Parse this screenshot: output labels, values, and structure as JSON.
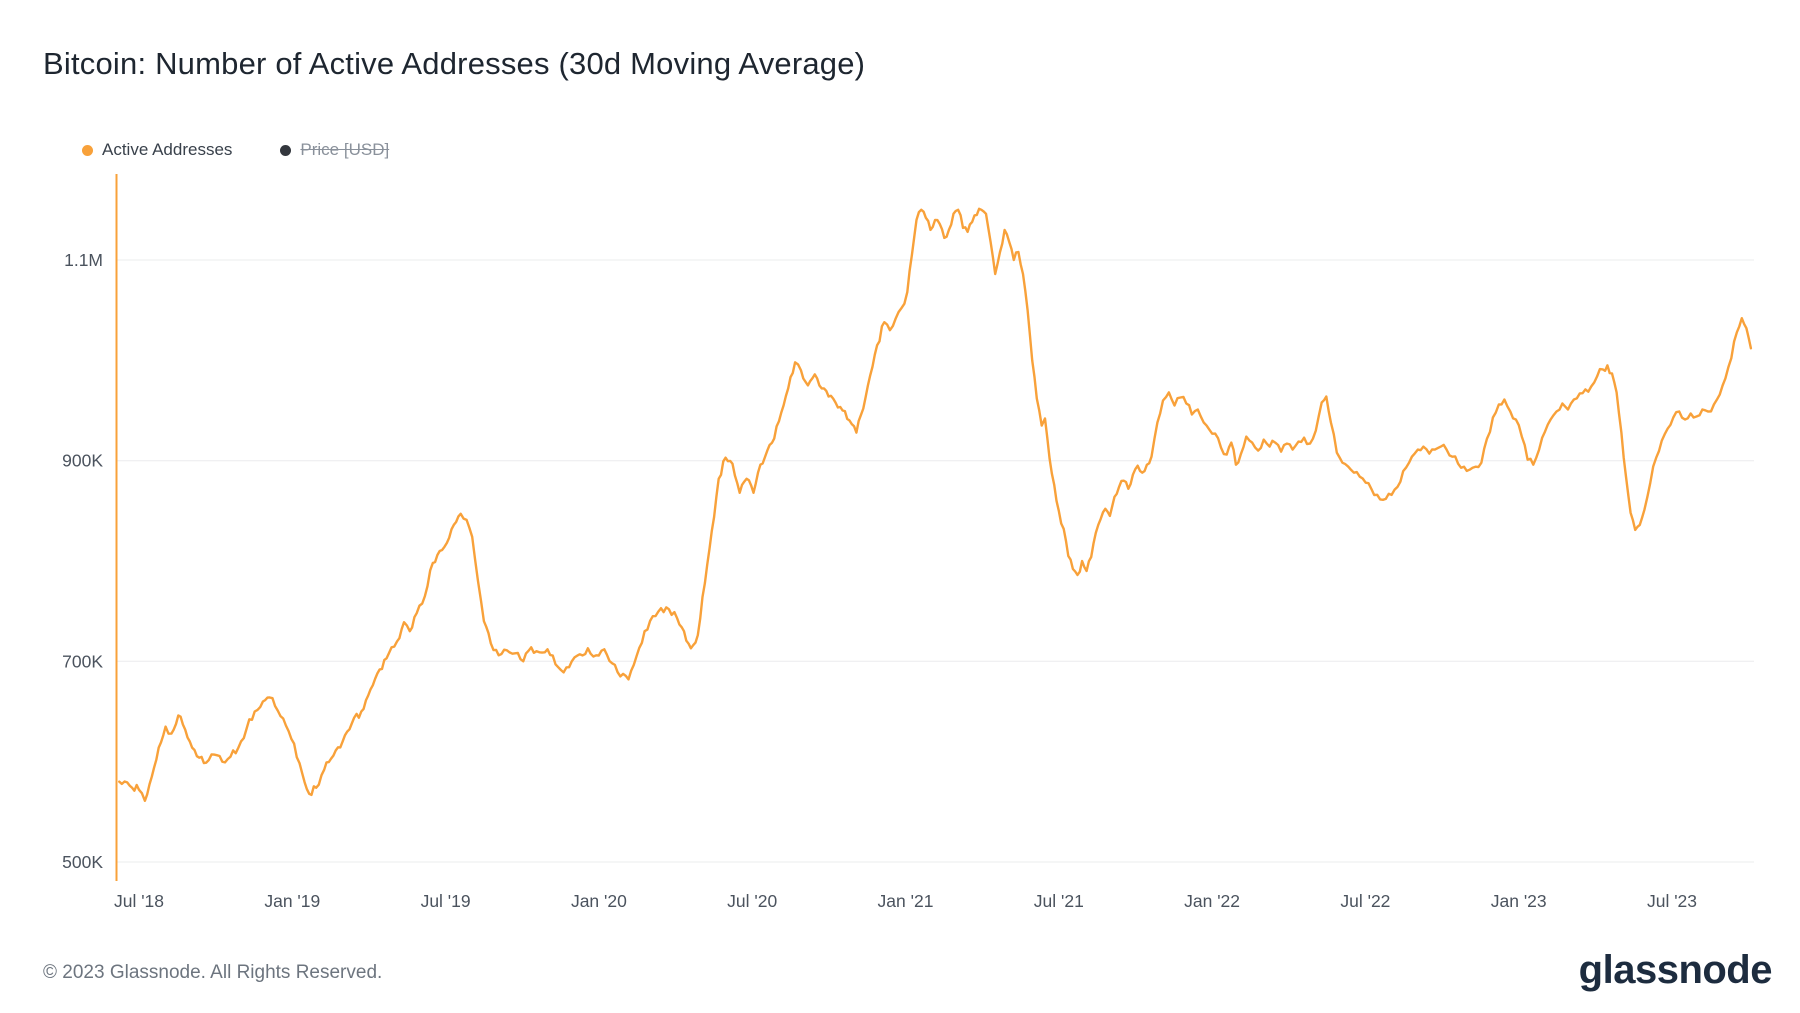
{
  "header": {
    "title": "Bitcoin: Number of Active Addresses (30d Moving Average)"
  },
  "legend": {
    "items": [
      {
        "label": "Active Addresses",
        "color": "#f8a13a",
        "enabled": true
      },
      {
        "label": "Price [USD]",
        "color": "#33373d",
        "enabled": false
      }
    ]
  },
  "footer": {
    "copyright": "© 2023 Glassnode. All Rights Reserved.",
    "brand": "glassnode"
  },
  "chart_data": {
    "type": "line",
    "title": "Bitcoin: Number of Active Addresses (30d Moving Average)",
    "legend_position": "top-left",
    "grid": "horizontal",
    "style": {
      "line_color": "#f8a13a",
      "grid_color": "#ebecee",
      "axis_text_color": "#4b535e",
      "background": "#ffffff"
    },
    "series": [
      {
        "name": "Active Addresses",
        "color": "#f8a13a",
        "visible": true,
        "unit": "addresses"
      },
      {
        "name": "Price [USD]",
        "color": "#33373d",
        "visible": false,
        "unit": "USD"
      }
    ],
    "y_axis": {
      "unit": "addresses (values in thousands)",
      "range_k": [
        480,
        1190
      ],
      "ticks": [
        {
          "label": "1.1M",
          "value_k": 1100
        },
        {
          "label": "900K",
          "value_k": 900
        },
        {
          "label": "700K",
          "value_k": 700
        },
        {
          "label": "500K",
          "value_k": 500
        }
      ]
    },
    "x_axis": {
      "unit": "months since Jul 2018",
      "range_m": [
        -0.9,
        63.3
      ],
      "ticks": [
        {
          "label": "Jul '18",
          "m": 0
        },
        {
          "label": "Jan '19",
          "m": 6
        },
        {
          "label": "Jul '19",
          "m": 12
        },
        {
          "label": "Jan '20",
          "m": 18
        },
        {
          "label": "Jul '20",
          "m": 24
        },
        {
          "label": "Jan '21",
          "m": 30
        },
        {
          "label": "Jul '21",
          "m": 36
        },
        {
          "label": "Jan '22",
          "m": 42
        },
        {
          "label": "Jul '22",
          "m": 48
        },
        {
          "label": "Jan '23",
          "m": 54
        },
        {
          "label": "Jul '23",
          "m": 60
        }
      ]
    },
    "points_active_addresses_k": [
      [
        -0.77,
        580
      ],
      [
        -0.36,
        576
      ],
      [
        0,
        572
      ],
      [
        0.23,
        561
      ],
      [
        0.5,
        585
      ],
      [
        0.77,
        614
      ],
      [
        1.04,
        635
      ],
      [
        1.27,
        628
      ],
      [
        1.54,
        646
      ],
      [
        1.81,
        632
      ],
      [
        2.08,
        614
      ],
      [
        2.36,
        604
      ],
      [
        2.63,
        599
      ],
      [
        2.94,
        607
      ],
      [
        3.26,
        600
      ],
      [
        3.58,
        605
      ],
      [
        3.89,
        614
      ],
      [
        4.21,
        633
      ],
      [
        4.53,
        650
      ],
      [
        4.85,
        660
      ],
      [
        5.12,
        664
      ],
      [
        5.43,
        651
      ],
      [
        5.75,
        636
      ],
      [
        6.07,
        618
      ],
      [
        6.39,
        588
      ],
      [
        6.66,
        568
      ],
      [
        6.93,
        574
      ],
      [
        7.25,
        592
      ],
      [
        7.61,
        606
      ],
      [
        7.97,
        620
      ],
      [
        8.33,
        638
      ],
      [
        8.7,
        650
      ],
      [
        9.06,
        672
      ],
      [
        9.42,
        692
      ],
      [
        9.78,
        708
      ],
      [
        10.1,
        720
      ],
      [
        10.37,
        739
      ],
      [
        10.6,
        730
      ],
      [
        10.87,
        748
      ],
      [
        11.19,
        765
      ],
      [
        11.5,
        798
      ],
      [
        11.77,
        810
      ],
      [
        12.05,
        818
      ],
      [
        12.32,
        836
      ],
      [
        12.59,
        847
      ],
      [
        12.82,
        841
      ],
      [
        13.04,
        824
      ],
      [
        13.27,
        780
      ],
      [
        13.5,
        740
      ],
      [
        13.77,
        718
      ],
      [
        14.08,
        706
      ],
      [
        14.4,
        711
      ],
      [
        14.72,
        708
      ],
      [
        15.04,
        700
      ],
      [
        15.35,
        714
      ],
      [
        15.67,
        709
      ],
      [
        15.99,
        712
      ],
      [
        16.3,
        697
      ],
      [
        16.62,
        689
      ],
      [
        16.94,
        700
      ],
      [
        17.25,
        707
      ],
      [
        17.57,
        713
      ],
      [
        17.89,
        706
      ],
      [
        18.21,
        712
      ],
      [
        18.52,
        698
      ],
      [
        18.84,
        685
      ],
      [
        19.16,
        682
      ],
      [
        19.47,
        705
      ],
      [
        19.79,
        730
      ],
      [
        20.11,
        745
      ],
      [
        20.43,
        753
      ],
      [
        20.74,
        752
      ],
      [
        21.06,
        743
      ],
      [
        21.33,
        730
      ],
      [
        21.6,
        713
      ],
      [
        21.87,
        726
      ],
      [
        22.15,
        778
      ],
      [
        22.42,
        830
      ],
      [
        22.69,
        882
      ],
      [
        22.96,
        903
      ],
      [
        23.23,
        897
      ],
      [
        23.51,
        868
      ],
      [
        23.78,
        882
      ],
      [
        24.05,
        868
      ],
      [
        24.32,
        896
      ],
      [
        24.59,
        910
      ],
      [
        24.86,
        922
      ],
      [
        25.14,
        948
      ],
      [
        25.41,
        972
      ],
      [
        25.68,
        998
      ],
      [
        25.91,
        990
      ],
      [
        26.18,
        975
      ],
      [
        26.45,
        986
      ],
      [
        26.72,
        972
      ],
      [
        26.99,
        964
      ],
      [
        27.26,
        958
      ],
      [
        27.54,
        950
      ],
      [
        27.81,
        940
      ],
      [
        28.08,
        928
      ],
      [
        28.35,
        952
      ],
      [
        28.62,
        985
      ],
      [
        28.89,
        1015
      ],
      [
        29.17,
        1038
      ],
      [
        29.39,
        1030
      ],
      [
        29.62,
        1042
      ],
      [
        29.84,
        1052
      ],
      [
        30.07,
        1068
      ],
      [
        30.25,
        1105
      ],
      [
        30.43,
        1140
      ],
      [
        30.62,
        1150
      ],
      [
        30.8,
        1142
      ],
      [
        30.98,
        1130
      ],
      [
        31.16,
        1140
      ],
      [
        31.34,
        1136
      ],
      [
        31.52,
        1122
      ],
      [
        31.7,
        1130
      ],
      [
        31.88,
        1146
      ],
      [
        32.06,
        1150
      ],
      [
        32.25,
        1132
      ],
      [
        32.43,
        1128
      ],
      [
        32.61,
        1138
      ],
      [
        32.79,
        1145
      ],
      [
        32.97,
        1150
      ],
      [
        33.15,
        1146
      ],
      [
        33.33,
        1118
      ],
      [
        33.51,
        1086
      ],
      [
        33.7,
        1108
      ],
      [
        33.88,
        1130
      ],
      [
        34.06,
        1118
      ],
      [
        34.24,
        1100
      ],
      [
        34.42,
        1108
      ],
      [
        34.6,
        1086
      ],
      [
        34.78,
        1050
      ],
      [
        34.96,
        1000
      ],
      [
        35.14,
        962
      ],
      [
        35.33,
        935
      ],
      [
        35.46,
        942
      ],
      [
        35.64,
        902
      ],
      [
        35.82,
        876
      ],
      [
        36,
        850
      ],
      [
        36.19,
        832
      ],
      [
        36.37,
        805
      ],
      [
        36.55,
        792
      ],
      [
        36.73,
        786
      ],
      [
        36.91,
        800
      ],
      [
        37.09,
        790
      ],
      [
        37.27,
        804
      ],
      [
        37.45,
        828
      ],
      [
        37.64,
        842
      ],
      [
        37.82,
        852
      ],
      [
        38,
        845
      ],
      [
        38.18,
        864
      ],
      [
        38.36,
        874
      ],
      [
        38.54,
        880
      ],
      [
        38.72,
        872
      ],
      [
        38.9,
        886
      ],
      [
        39.09,
        895
      ],
      [
        39.27,
        888
      ],
      [
        39.45,
        896
      ],
      [
        39.63,
        904
      ],
      [
        39.86,
        938
      ],
      [
        40.08,
        960
      ],
      [
        40.31,
        968
      ],
      [
        40.53,
        955
      ],
      [
        40.76,
        963
      ],
      [
        40.99,
        957
      ],
      [
        41.21,
        946
      ],
      [
        41.44,
        951
      ],
      [
        41.67,
        938
      ],
      [
        41.89,
        931
      ],
      [
        42.12,
        927
      ],
      [
        42.35,
        913
      ],
      [
        42.57,
        906
      ],
      [
        42.75,
        918
      ],
      [
        42.93,
        896
      ],
      [
        43.12,
        906
      ],
      [
        43.34,
        924
      ],
      [
        43.57,
        918
      ],
      [
        43.8,
        910
      ],
      [
        44.02,
        921
      ],
      [
        44.25,
        914
      ],
      [
        44.47,
        918
      ],
      [
        44.7,
        909
      ],
      [
        44.93,
        917
      ],
      [
        45.15,
        911
      ],
      [
        45.38,
        919
      ],
      [
        45.6,
        923
      ],
      [
        45.83,
        917
      ],
      [
        46.06,
        930
      ],
      [
        46.29,
        958
      ],
      [
        46.47,
        964
      ],
      [
        46.65,
        938
      ],
      [
        46.88,
        908
      ],
      [
        47.1,
        898
      ],
      [
        47.33,
        894
      ],
      [
        47.55,
        888
      ],
      [
        47.78,
        884
      ],
      [
        48.01,
        878
      ],
      [
        48.23,
        872
      ],
      [
        48.46,
        866
      ],
      [
        48.69,
        861
      ],
      [
        48.91,
        867
      ],
      [
        49.14,
        871
      ],
      [
        49.37,
        879
      ],
      [
        49.59,
        893
      ],
      [
        49.82,
        904
      ],
      [
        50.05,
        911
      ],
      [
        50.27,
        914
      ],
      [
        50.5,
        907
      ],
      [
        50.72,
        911
      ],
      [
        50.95,
        914
      ],
      [
        51.18,
        911
      ],
      [
        51.4,
        904
      ],
      [
        51.63,
        897
      ],
      [
        51.86,
        894
      ],
      [
        52.08,
        891
      ],
      [
        52.31,
        894
      ],
      [
        52.54,
        898
      ],
      [
        52.76,
        922
      ],
      [
        52.99,
        943
      ],
      [
        53.22,
        956
      ],
      [
        53.44,
        961
      ],
      [
        53.67,
        949
      ],
      [
        53.89,
        941
      ],
      [
        54.12,
        924
      ],
      [
        54.35,
        901
      ],
      [
        54.57,
        896
      ],
      [
        54.8,
        911
      ],
      [
        55.03,
        929
      ],
      [
        55.25,
        941
      ],
      [
        55.48,
        949
      ],
      [
        55.71,
        957
      ],
      [
        55.93,
        951
      ],
      [
        56.16,
        961
      ],
      [
        56.39,
        967
      ],
      [
        56.61,
        971
      ],
      [
        56.84,
        974
      ],
      [
        57.07,
        984
      ],
      [
        57.29,
        991
      ],
      [
        57.47,
        995
      ],
      [
        57.65,
        987
      ],
      [
        57.83,
        968
      ],
      [
        58.02,
        928
      ],
      [
        58.2,
        884
      ],
      [
        58.38,
        848
      ],
      [
        58.56,
        831
      ],
      [
        58.74,
        836
      ],
      [
        58.92,
        851
      ],
      [
        59.15,
        878
      ],
      [
        59.38,
        903
      ],
      [
        59.6,
        920
      ],
      [
        59.83,
        932
      ],
      [
        60.05,
        943
      ],
      [
        60.28,
        949
      ],
      [
        60.51,
        941
      ],
      [
        60.73,
        947
      ],
      [
        60.96,
        944
      ],
      [
        61.19,
        951
      ],
      [
        61.41,
        949
      ],
      [
        61.64,
        956
      ],
      [
        61.87,
        966
      ],
      [
        62.09,
        982
      ],
      [
        62.32,
        1002
      ],
      [
        62.54,
        1028
      ],
      [
        62.73,
        1042
      ],
      [
        62.91,
        1032
      ],
      [
        63.09,
        1012
      ]
    ]
  }
}
